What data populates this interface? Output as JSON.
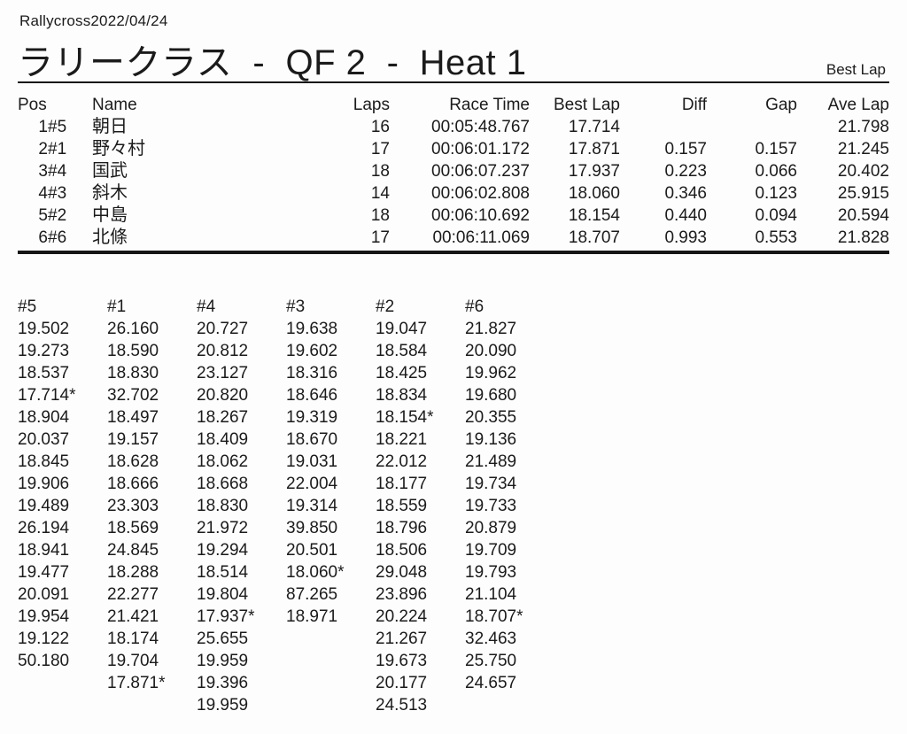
{
  "page": {
    "event_label": "Rallycross2022/04/24",
    "title": "ラリークラス  -  QF 2  -  Heat 1",
    "corner_label": "Best Lap"
  },
  "results": {
    "headers": {
      "pos": "Pos",
      "name": "Name",
      "laps": "Laps",
      "race_time": "Race Time",
      "best_lap": "Best Lap",
      "diff": "Diff",
      "gap": "Gap",
      "ave_lap": "Ave Lap"
    },
    "rows": [
      {
        "pos": "1",
        "car": "#5",
        "name": "朝日",
        "laps": "16",
        "race_time": "00:05:48.767",
        "best_lap": "17.714",
        "diff": "",
        "gap": "",
        "ave_lap": "21.798"
      },
      {
        "pos": "2",
        "car": "#1",
        "name": "野々村",
        "laps": "17",
        "race_time": "00:06:01.172",
        "best_lap": "17.871",
        "diff": "0.157",
        "gap": "0.157",
        "ave_lap": "21.245"
      },
      {
        "pos": "3",
        "car": "#4",
        "name": "国武",
        "laps": "18",
        "race_time": "00:06:07.237",
        "best_lap": "17.937",
        "diff": "0.223",
        "gap": "0.066",
        "ave_lap": "20.402"
      },
      {
        "pos": "4",
        "car": "#3",
        "name": "斜木",
        "laps": "14",
        "race_time": "00:06:02.808",
        "best_lap": "18.060",
        "diff": "0.346",
        "gap": "0.123",
        "ave_lap": "25.915"
      },
      {
        "pos": "5",
        "car": "#2",
        "name": "中島",
        "laps": "18",
        "race_time": "00:06:10.692",
        "best_lap": "18.154",
        "diff": "0.440",
        "gap": "0.094",
        "ave_lap": "20.594"
      },
      {
        "pos": "6",
        "car": "#6",
        "name": "北條",
        "laps": "17",
        "race_time": "00:06:11.069",
        "best_lap": "18.707",
        "diff": "0.993",
        "gap": "0.553",
        "ave_lap": "21.828"
      }
    ]
  },
  "lap_chart": {
    "columns": [
      {
        "car": "#5",
        "laps": [
          "19.502",
          "19.273",
          "18.537",
          "17.714*",
          "18.904",
          "20.037",
          "18.845",
          "19.906",
          "19.489",
          "26.194",
          "18.941",
          "19.477",
          "20.091",
          "19.954",
          "19.122",
          "50.180"
        ]
      },
      {
        "car": "#1",
        "laps": [
          "26.160",
          "18.590",
          "18.830",
          "32.702",
          "18.497",
          "19.157",
          "18.628",
          "18.666",
          "23.303",
          "18.569",
          "24.845",
          "18.288",
          "22.277",
          "21.421",
          "18.174",
          "19.704",
          "17.871*"
        ]
      },
      {
        "car": "#4",
        "laps": [
          "20.727",
          "20.812",
          "23.127",
          "20.820",
          "18.267",
          "18.409",
          "18.062",
          "18.668",
          "18.830",
          "21.972",
          "19.294",
          "18.514",
          "19.804",
          "17.937*",
          "25.655",
          "19.959",
          "19.396",
          "19.959"
        ]
      },
      {
        "car": "#3",
        "laps": [
          "19.638",
          "19.602",
          "18.316",
          "18.646",
          "19.319",
          "18.670",
          "19.031",
          "22.004",
          "19.314",
          "39.850",
          "20.501",
          "18.060*",
          "87.265",
          "18.971"
        ]
      },
      {
        "car": "#2",
        "laps": [
          "19.047",
          "18.584",
          "18.425",
          "18.834",
          "18.154*",
          "18.221",
          "22.012",
          "18.177",
          "18.559",
          "18.796",
          "18.506",
          "29.048",
          "23.896",
          "20.224",
          "21.267",
          "19.673",
          "20.177",
          "24.513"
        ]
      },
      {
        "car": "#6",
        "laps": [
          "21.827",
          "20.090",
          "19.962",
          "19.680",
          "20.355",
          "19.136",
          "21.489",
          "19.734",
          "19.733",
          "20.879",
          "19.709",
          "19.793",
          "21.104",
          "18.707*",
          "32.463",
          "25.750",
          "24.657"
        ]
      }
    ]
  }
}
